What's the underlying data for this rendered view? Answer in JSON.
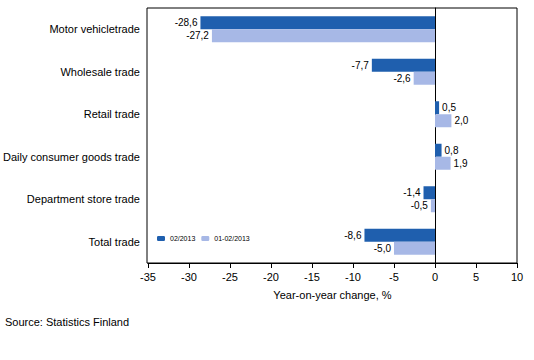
{
  "chart_data": {
    "type": "bar",
    "orientation": "horizontal",
    "categories": [
      "Motor vehicletrade",
      "Wholesale trade",
      "Retail trade",
      "Daily consumer goods trade",
      "Department store trade",
      "Total trade"
    ],
    "series": [
      {
        "name": "02/2013",
        "color": "#1f5fae",
        "values": [
          -28.6,
          -7.7,
          0.5,
          0.8,
          -1.4,
          -8.6
        ],
        "value_labels": [
          "-28,6",
          "-7,7",
          "0,5",
          "0,8",
          "-1,4",
          "-8,6"
        ]
      },
      {
        "name": "01-02/2013",
        "color": "#a7b8e6",
        "values": [
          -27.2,
          -2.6,
          2.0,
          1.9,
          -0.5,
          -5.0
        ],
        "value_labels": [
          "-27,2",
          "-2,6",
          "2,0",
          "1,9",
          "-0,5",
          "-5,0"
        ]
      }
    ],
    "xlabel": "Year-on-year change, %",
    "xlim": [
      -35,
      10
    ],
    "xticks": [
      -35,
      -30,
      -25,
      -20,
      -15,
      -10,
      -5,
      0,
      5,
      10
    ],
    "data_labels": true,
    "grid": false,
    "legend": "lower left",
    "source": "Source: Statistics Finland"
  }
}
